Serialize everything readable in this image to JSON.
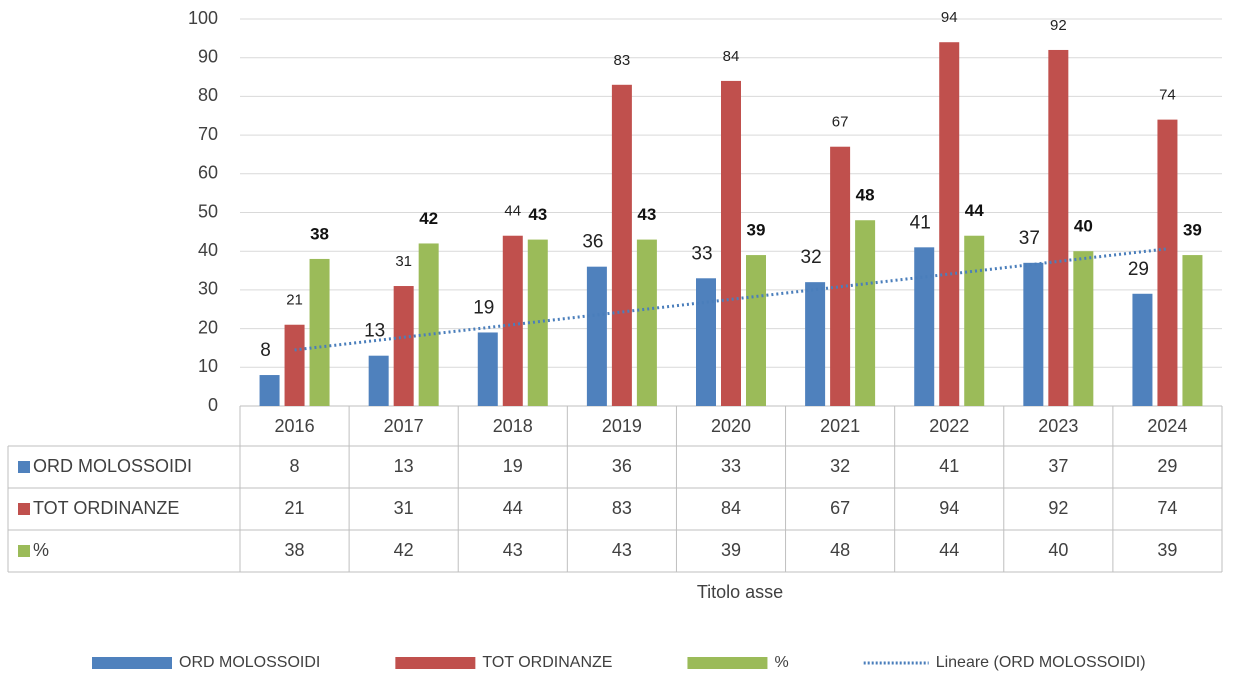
{
  "chart_data": {
    "type": "bar",
    "categories": [
      "2016",
      "2017",
      "2018",
      "2019",
      "2020",
      "2021",
      "2022",
      "2023",
      "2024"
    ],
    "series": [
      {
        "name": "ORD MOLOSSOIDI",
        "color": "#4f81bd",
        "values": [
          8,
          13,
          19,
          36,
          33,
          32,
          41,
          37,
          29
        ],
        "trendline": {
          "name": "Lineare (ORD MOLOSSOIDI)",
          "type": "linear",
          "color": "#4a7ebb",
          "style": "dotted"
        }
      },
      {
        "name": "TOT ORDINANZE",
        "color": "#c0504d",
        "values": [
          21,
          31,
          44,
          83,
          84,
          67,
          94,
          92,
          74
        ]
      },
      {
        "name": "%",
        "color": "#9bbb59",
        "values": [
          38,
          42,
          43,
          43,
          39,
          48,
          44,
          40,
          39
        ]
      }
    ],
    "x_label": "Titolo asse",
    "ylim": [
      0,
      100
    ],
    "yticks": [
      0,
      10,
      20,
      30,
      40,
      50,
      60,
      70,
      80,
      90,
      100
    ],
    "grid": true,
    "data_table": true,
    "legend": "bottom"
  }
}
